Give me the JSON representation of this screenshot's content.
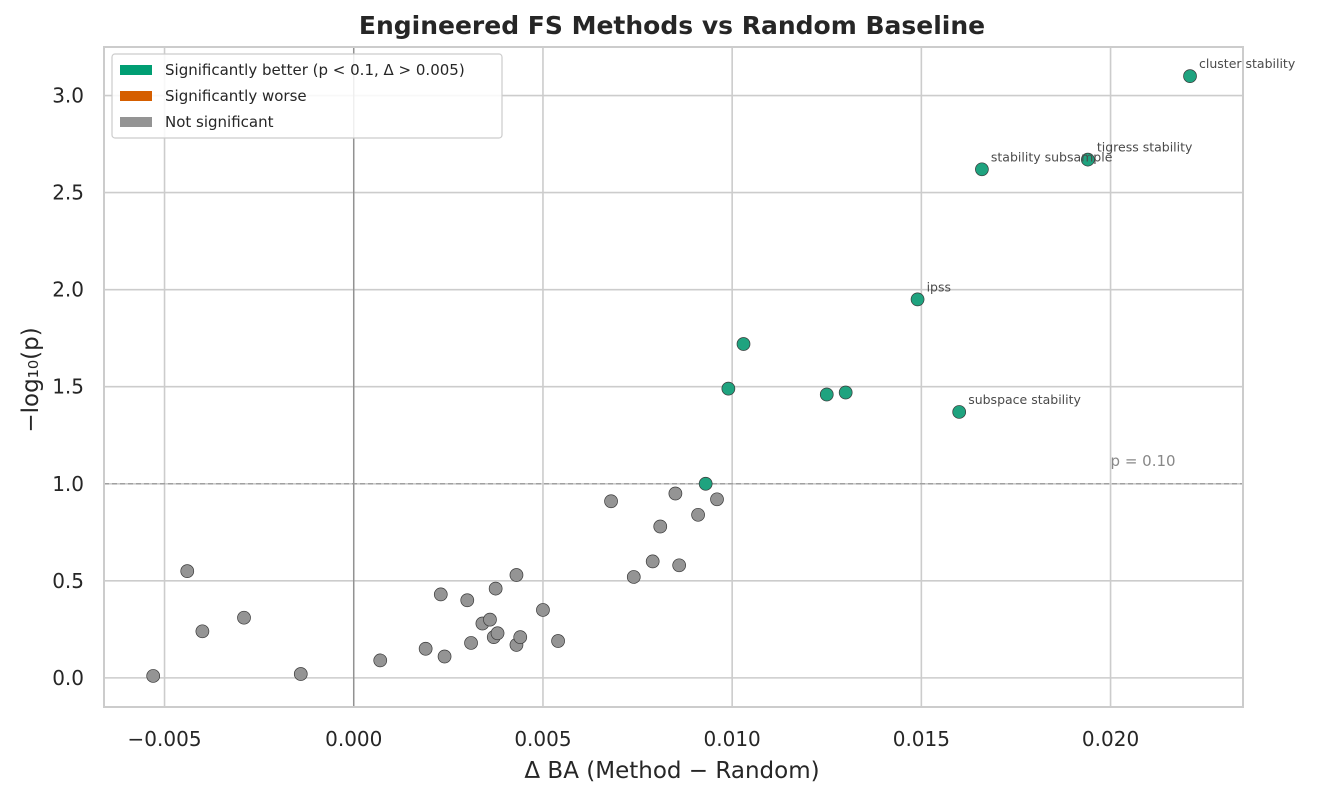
{
  "chart_data": {
    "type": "scatter",
    "title": "Engineered FS Methods vs Random Baseline",
    "xlabel": "Δ BA (Method − Random)",
    "ylabel": "−log₁₀(p)",
    "xlim": [
      -0.0066,
      0.0235
    ],
    "ylim": [
      -0.15,
      3.25
    ],
    "x_ticks": [
      -0.005,
      0.0,
      0.005,
      0.01,
      0.015,
      0.02
    ],
    "x_tick_labels": [
      "−0.005",
      "0.000",
      "0.005",
      "0.010",
      "0.015",
      "0.020"
    ],
    "y_ticks": [
      0.0,
      0.5,
      1.0,
      1.5,
      2.0,
      2.5,
      3.0
    ],
    "y_tick_labels": [
      "0.0",
      "0.5",
      "1.0",
      "1.5",
      "2.0",
      "2.5",
      "3.0"
    ],
    "grid": true,
    "legend_position": "top-left",
    "threshold": {
      "y": 1.0,
      "label": "p = 0.10"
    },
    "colors": {
      "better": "#009e73",
      "worse": "#d55e00",
      "ns": "#949494"
    },
    "legend": [
      {
        "label": "Significantly better (p < 0.1, Δ > 0.005)",
        "color": "#009e73"
      },
      {
        "label": "Significantly worse",
        "color": "#d55e00"
      },
      {
        "label": "Not significant",
        "color": "#949494"
      }
    ],
    "series": [
      {
        "name": "Significantly better (p < 0.1, Δ > 0.005)",
        "color": "#1fa37f",
        "points": [
          {
            "x": 0.0221,
            "y": 3.1,
            "label": "cluster stability"
          },
          {
            "x": 0.0194,
            "y": 2.67,
            "label": "tigress stability"
          },
          {
            "x": 0.0166,
            "y": 2.62,
            "label": "stability subsample"
          },
          {
            "x": 0.0149,
            "y": 1.95,
            "label": "ipss"
          },
          {
            "x": 0.0103,
            "y": 1.72
          },
          {
            "x": 0.0099,
            "y": 1.49
          },
          {
            "x": 0.0125,
            "y": 1.46
          },
          {
            "x": 0.013,
            "y": 1.47
          },
          {
            "x": 0.016,
            "y": 1.37,
            "label": "subspace stability"
          },
          {
            "x": 0.0093,
            "y": 1.0
          }
        ]
      },
      {
        "name": "Not significant",
        "color": "#949494",
        "points": [
          {
            "x": -0.0053,
            "y": 0.01
          },
          {
            "x": -0.0044,
            "y": 0.55
          },
          {
            "x": -0.004,
            "y": 0.24
          },
          {
            "x": -0.0029,
            "y": 0.31
          },
          {
            "x": -0.0014,
            "y": 0.02
          },
          {
            "x": 0.0007,
            "y": 0.09
          },
          {
            "x": 0.0019,
            "y": 0.15
          },
          {
            "x": 0.0023,
            "y": 0.43
          },
          {
            "x": 0.0024,
            "y": 0.11
          },
          {
            "x": 0.003,
            "y": 0.4
          },
          {
            "x": 0.0031,
            "y": 0.18
          },
          {
            "x": 0.0034,
            "y": 0.28
          },
          {
            "x": 0.0036,
            "y": 0.3
          },
          {
            "x": 0.0037,
            "y": 0.21
          },
          {
            "x": 0.00375,
            "y": 0.46
          },
          {
            "x": 0.0038,
            "y": 0.23
          },
          {
            "x": 0.0043,
            "y": 0.53
          },
          {
            "x": 0.0043,
            "y": 0.17
          },
          {
            "x": 0.0044,
            "y": 0.21
          },
          {
            "x": 0.005,
            "y": 0.35
          },
          {
            "x": 0.0054,
            "y": 0.19
          },
          {
            "x": 0.0068,
            "y": 0.91
          },
          {
            "x": 0.0074,
            "y": 0.52
          },
          {
            "x": 0.0079,
            "y": 0.6
          },
          {
            "x": 0.0081,
            "y": 0.78
          },
          {
            "x": 0.0085,
            "y": 0.95
          },
          {
            "x": 0.0086,
            "y": 0.58
          },
          {
            "x": 0.0091,
            "y": 0.84
          },
          {
            "x": 0.0096,
            "y": 0.92
          }
        ]
      }
    ]
  }
}
